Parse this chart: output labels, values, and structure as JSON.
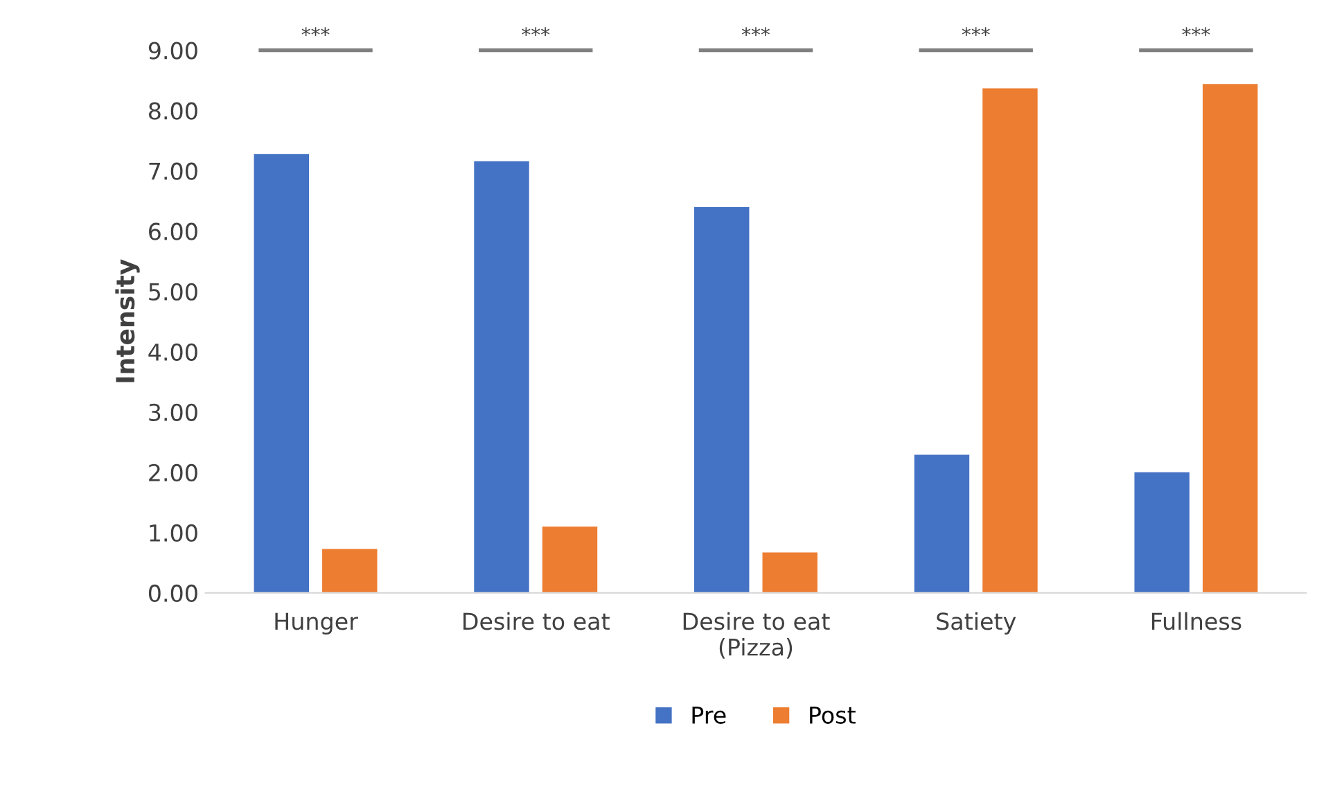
{
  "chart_data": {
    "type": "bar",
    "ylabel": "Intensity",
    "categories": [
      "Hunger",
      "Desire to eat",
      "Desire to eat\n(Pizza)",
      "Satiety",
      "Fullness"
    ],
    "series": [
      {
        "name": "Pre",
        "color": "#4472c4",
        "values": [
          7.28,
          7.16,
          6.4,
          2.29,
          2.0
        ]
      },
      {
        "name": "Post",
        "color": "#ed7d31",
        "values": [
          0.73,
          1.1,
          0.67,
          8.37,
          8.44
        ]
      }
    ],
    "ylim": [
      0,
      9
    ],
    "yticks": [
      {
        "value": 0,
        "label": "0.00"
      },
      {
        "value": 1,
        "label": "1.00"
      },
      {
        "value": 2,
        "label": "2.00"
      },
      {
        "value": 3,
        "label": "3.00"
      },
      {
        "value": 4,
        "label": "4.00"
      },
      {
        "value": 5,
        "label": "5.00"
      },
      {
        "value": 6,
        "label": "6.00"
      },
      {
        "value": 7,
        "label": "7.00"
      },
      {
        "value": 8,
        "label": "8.00"
      },
      {
        "value": 9,
        "label": "9.00"
      }
    ],
    "annotations": [
      "***",
      "***",
      "***",
      "***",
      "***"
    ],
    "grid": false,
    "legend": "bottom"
  }
}
